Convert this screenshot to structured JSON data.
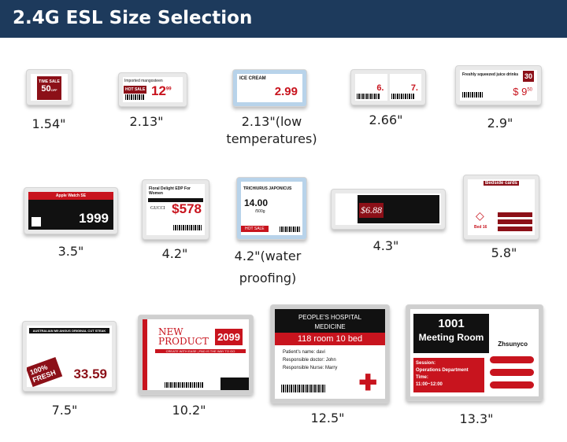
{
  "header": {
    "title": "2.4G ESL Size Selection"
  },
  "sizes": [
    {
      "label": "1.54\"",
      "screen": {
        "tag": "TIME SALE",
        "price": "50",
        "suffix": "OFF"
      }
    },
    {
      "label": "2.13\"",
      "screen": {
        "title": "Imported mangosteen",
        "tag": "HOT SALE",
        "price": "12",
        "cents": "99"
      }
    },
    {
      "label": "2.13\"(low temperatures)",
      "screen": {
        "title": "ICE CREAM",
        "price": "2.99"
      }
    },
    {
      "label": "2.66\"",
      "screen": {
        "price1": "6.",
        "price2": "7."
      }
    },
    {
      "label": "2.9\"",
      "screen": {
        "title": "Freshly squeezed juice drinks",
        "badge": "30",
        "price": "$ 9",
        "cents": "50"
      }
    },
    {
      "label": "3.5\"",
      "screen": {
        "title": "Apple Watch SE",
        "price": "1999"
      }
    },
    {
      "label": "4.2\"",
      "screen": {
        "title": "Floral Delight EDP For Women",
        "brand": "GUCCI",
        "price": "578"
      }
    },
    {
      "label": "4.2\"(water proofing)",
      "screen": {
        "title": "TRICHIURUS JAPONICUS",
        "price": "14.00",
        "unit": "/500g",
        "tag": "HOT SALE"
      }
    },
    {
      "label": "4.3\"",
      "screen": {
        "price": "$6.88"
      }
    },
    {
      "label": "5.8\"",
      "screen": {
        "title": "Bedside cards",
        "bed": "Bed 16"
      }
    },
    {
      "label": "7.5\"",
      "screen": {
        "title": "AUSTRALIAN M9 ANGUS ORIGINAL CUT STEAK",
        "tag": "100% FRESH",
        "price": "33.59"
      }
    },
    {
      "label": "10.2\"",
      "screen": {
        "title": "NEW PRODUCT",
        "price": "2099",
        "line": "CREATE WITH EASE | PAD IS THE WAY TO GO"
      }
    },
    {
      "label": "12.5\"",
      "screen": {
        "title1": "PEOPLE'S HOSPITAL",
        "title2": "MEDICINE",
        "room": "118 room 10 bed",
        "lines": [
          "Patient's name: davi",
          "Responsible doctor: John",
          "Responsible Nurse: Marry"
        ]
      }
    },
    {
      "label": "13.3\"",
      "screen": {
        "room": "1001",
        "title": "Meeting Room",
        "brand": "Zhsunyco",
        "session": [
          "Session:",
          "Operations Department",
          "Time:",
          "11:00~12:00"
        ]
      }
    }
  ],
  "colors": {
    "header": "#1d3a5c",
    "accent_red": "#c8141e",
    "dark_red": "#8c1018"
  }
}
